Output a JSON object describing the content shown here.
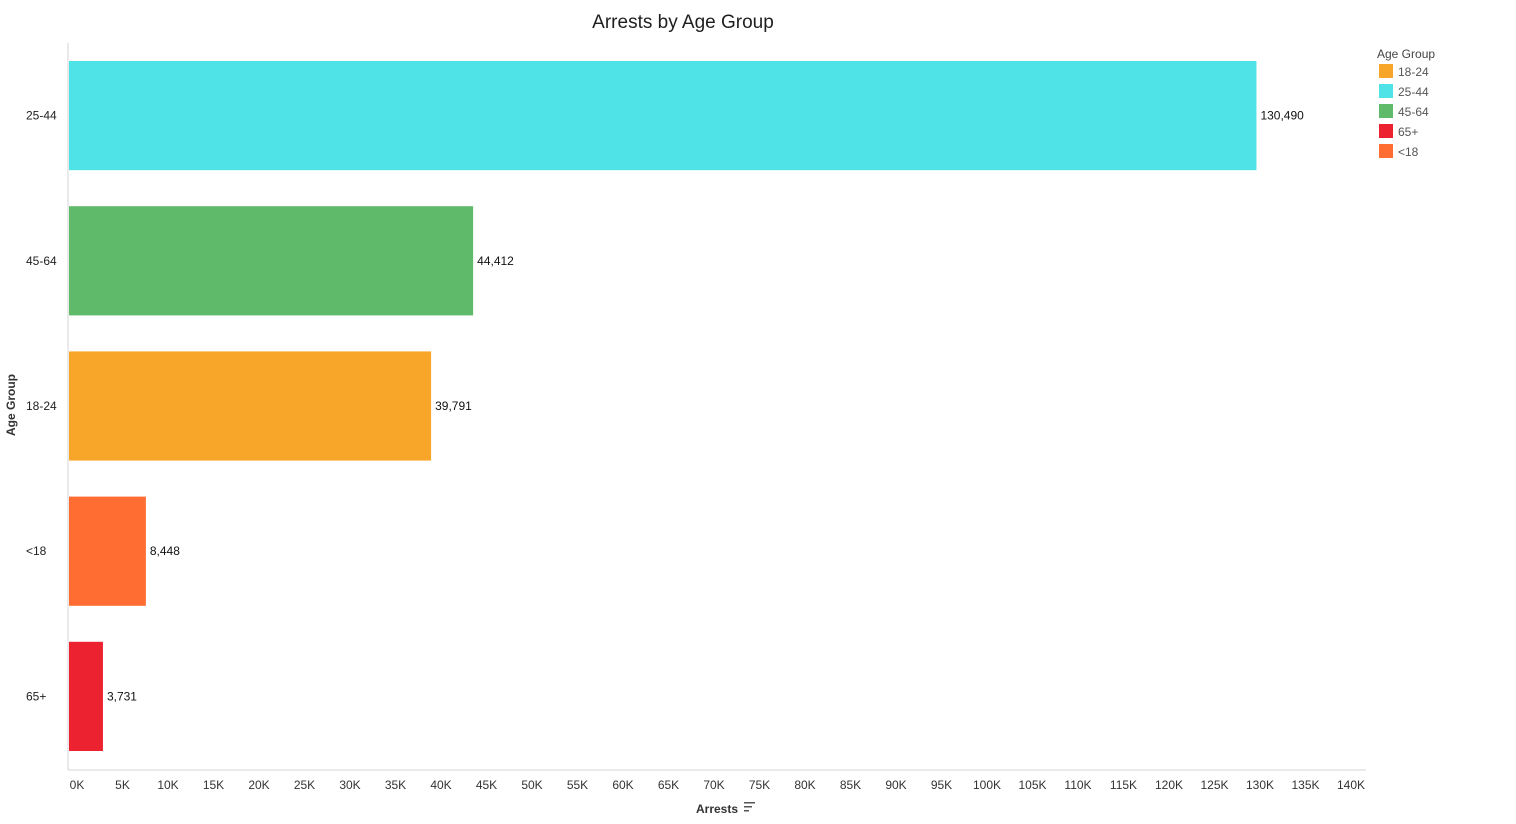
{
  "chart_data": {
    "type": "bar",
    "orientation": "horizontal",
    "title": "Arrests by Age Group",
    "xlabel": "Arrests",
    "ylabel": "Age Group",
    "categories": [
      "25-44",
      "45-64",
      "18-24",
      "<18",
      "65+"
    ],
    "values": [
      130490,
      44412,
      39791,
      8448,
      3731
    ],
    "data_labels": [
      "130,490",
      "44,412",
      "39,791",
      "8,448",
      "3,731"
    ],
    "bar_colors": [
      "#4FE3E8",
      "#5FBB69",
      "#F7A62A",
      "#FF6D33",
      "#ED2231"
    ],
    "xlim": [
      0,
      140000
    ],
    "x_ticks": [
      0,
      5000,
      10000,
      15000,
      20000,
      25000,
      30000,
      35000,
      40000,
      45000,
      50000,
      55000,
      60000,
      65000,
      70000,
      75000,
      80000,
      85000,
      90000,
      95000,
      100000,
      105000,
      110000,
      115000,
      120000,
      125000,
      130000,
      135000,
      140000
    ],
    "x_tick_labels": [
      "0K",
      "5K",
      "10K",
      "15K",
      "20K",
      "25K",
      "30K",
      "35K",
      "40K",
      "45K",
      "50K",
      "55K",
      "60K",
      "65K",
      "70K",
      "75K",
      "80K",
      "85K",
      "90K",
      "95K",
      "100K",
      "105K",
      "110K",
      "115K",
      "120K",
      "125K",
      "130K",
      "135K",
      "140K"
    ],
    "grid": false,
    "legend": {
      "title": "Age Group",
      "placement": "top-right",
      "items": [
        {
          "label": "18-24",
          "color": "#F7A62A"
        },
        {
          "label": "25-44",
          "color": "#4FE3E8"
        },
        {
          "label": "45-64",
          "color": "#5FBB69"
        },
        {
          "label": "65+",
          "color": "#ED2231"
        },
        {
          "label": "<18",
          "color": "#FF6D33"
        }
      ]
    },
    "sort_icon": "sort-descending-icon"
  }
}
